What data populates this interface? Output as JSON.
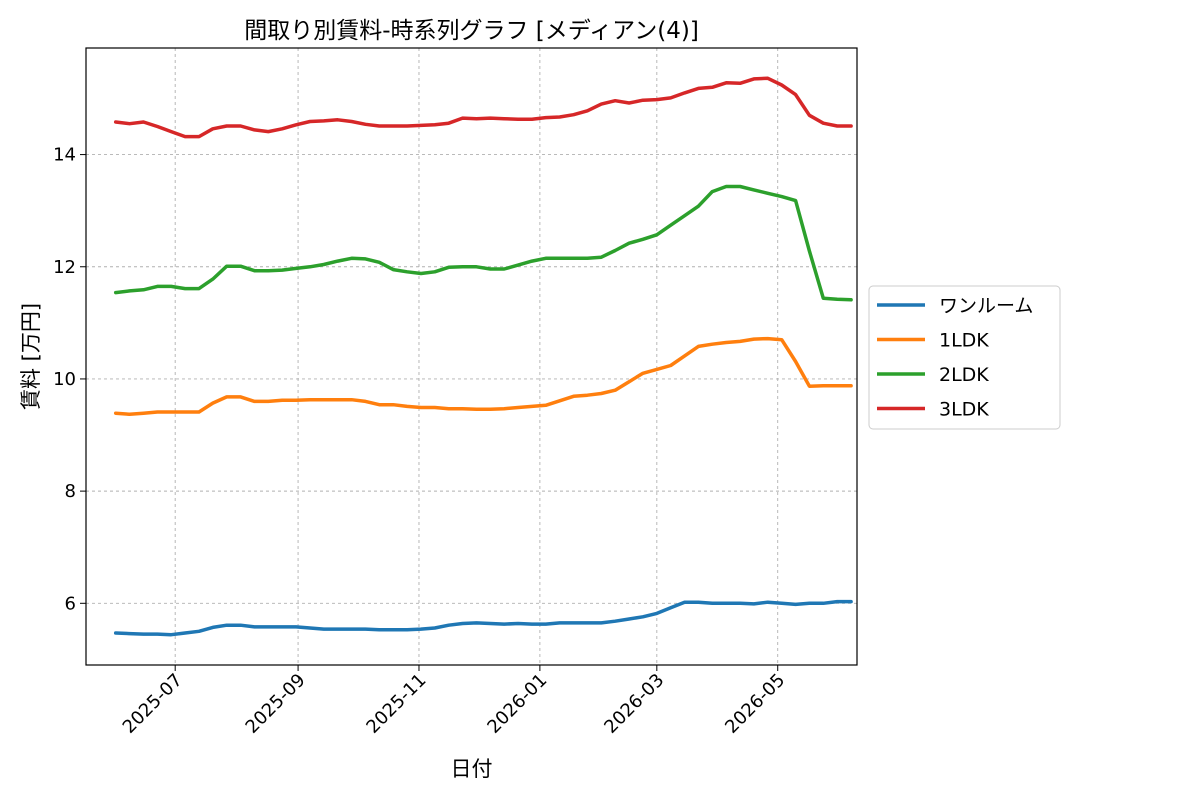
{
  "chart_data": {
    "type": "line",
    "title": "間取り別賃料-時系列グラフ [メディアン(4)]",
    "xlabel": "日付",
    "ylabel": "賃料 [万円]",
    "x_ticks": [
      "2025-07",
      "2025-09",
      "2025-11",
      "2026-01",
      "2026-03",
      "2026-05"
    ],
    "y_ticks": [
      6,
      8,
      10,
      12,
      14
    ],
    "xlim": [
      "2025-05-17",
      "2026-06-10"
    ],
    "ylim": [
      4.9,
      15.9
    ],
    "grid": true,
    "legend_position": "center-right-outside",
    "x": [
      "2025-06-01",
      "2025-06-08",
      "2025-06-15",
      "2025-06-22",
      "2025-06-29",
      "2025-07-06",
      "2025-07-13",
      "2025-07-20",
      "2025-07-27",
      "2025-08-03",
      "2025-08-10",
      "2025-08-17",
      "2025-08-24",
      "2025-08-31",
      "2025-09-07",
      "2025-09-14",
      "2025-09-21",
      "2025-09-28",
      "2025-10-05",
      "2025-10-12",
      "2025-10-19",
      "2025-10-26",
      "2025-11-02",
      "2025-11-09",
      "2025-11-16",
      "2025-11-23",
      "2025-11-30",
      "2025-12-07",
      "2025-12-14",
      "2025-12-21",
      "2025-12-28",
      "2026-01-04",
      "2026-01-11",
      "2026-01-18",
      "2026-01-25",
      "2026-02-01",
      "2026-02-08",
      "2026-02-15",
      "2026-02-22",
      "2026-03-01",
      "2026-03-08",
      "2026-03-15",
      "2026-03-22",
      "2026-03-29",
      "2026-04-05",
      "2026-04-12",
      "2026-04-19",
      "2026-04-26",
      "2026-05-03",
      "2026-05-10",
      "2026-05-17",
      "2026-05-24",
      "2026-05-31",
      "2026-06-07"
    ],
    "series": [
      {
        "name": "ワンルーム",
        "color": "#1f77b4",
        "values": [
          5.47,
          5.46,
          5.45,
          5.45,
          5.44,
          5.47,
          5.5,
          5.57,
          5.61,
          5.61,
          5.58,
          5.58,
          5.58,
          5.58,
          5.56,
          5.54,
          5.54,
          5.54,
          5.54,
          5.53,
          5.53,
          5.53,
          5.54,
          5.56,
          5.61,
          5.64,
          5.65,
          5.64,
          5.63,
          5.64,
          5.63,
          5.63,
          5.65,
          5.65,
          5.65,
          5.65,
          5.68,
          5.72,
          5.76,
          5.82,
          5.92,
          6.02,
          6.02,
          6.0,
          6.0,
          6.0,
          5.99,
          6.02,
          6.0,
          5.98,
          6.0,
          6.0,
          6.03,
          6.03
        ]
      },
      {
        "name": "1LDK",
        "color": "#ff7f0e",
        "values": [
          9.39,
          9.37,
          9.39,
          9.41,
          9.41,
          9.41,
          9.41,
          9.57,
          9.68,
          9.68,
          9.6,
          9.6,
          9.62,
          9.62,
          9.63,
          9.63,
          9.63,
          9.63,
          9.6,
          9.54,
          9.54,
          9.51,
          9.49,
          9.49,
          9.47,
          9.47,
          9.46,
          9.46,
          9.47,
          9.49,
          9.51,
          9.53,
          9.61,
          9.69,
          9.71,
          9.74,
          9.8,
          9.95,
          10.1,
          10.17,
          10.24,
          10.41,
          10.58,
          10.62,
          10.65,
          10.67,
          10.71,
          10.72,
          10.7,
          10.31,
          9.87,
          9.88,
          9.88,
          9.88
        ]
      },
      {
        "name": "2LDK",
        "color": "#2ca02c",
        "values": [
          11.54,
          11.57,
          11.59,
          11.65,
          11.65,
          11.61,
          11.61,
          11.78,
          12.01,
          12.01,
          11.93,
          11.93,
          11.94,
          11.97,
          12.0,
          12.04,
          12.1,
          12.15,
          12.14,
          12.08,
          11.95,
          11.91,
          11.88,
          11.91,
          11.99,
          12.0,
          12.0,
          11.96,
          11.96,
          12.03,
          12.1,
          12.15,
          12.15,
          12.15,
          12.15,
          12.17,
          12.29,
          12.42,
          12.49,
          12.57,
          12.74,
          12.91,
          13.08,
          13.34,
          13.43,
          13.43,
          13.37,
          13.31,
          13.25,
          13.18,
          12.28,
          11.44,
          11.42,
          11.41
        ]
      },
      {
        "name": "3LDK",
        "color": "#d62728",
        "values": [
          14.58,
          14.55,
          14.58,
          14.5,
          14.41,
          14.32,
          14.32,
          14.46,
          14.51,
          14.51,
          14.44,
          14.41,
          14.46,
          14.53,
          14.59,
          14.6,
          14.62,
          14.59,
          14.54,
          14.51,
          14.51,
          14.51,
          14.52,
          14.53,
          14.56,
          14.65,
          14.64,
          14.65,
          14.64,
          14.63,
          14.63,
          14.66,
          14.67,
          14.71,
          14.78,
          14.9,
          14.96,
          14.92,
          14.97,
          14.98,
          15.01,
          15.1,
          15.18,
          15.2,
          15.28,
          15.27,
          15.35,
          15.36,
          15.24,
          15.07,
          14.7,
          14.56,
          14.51,
          14.51
        ]
      }
    ]
  }
}
